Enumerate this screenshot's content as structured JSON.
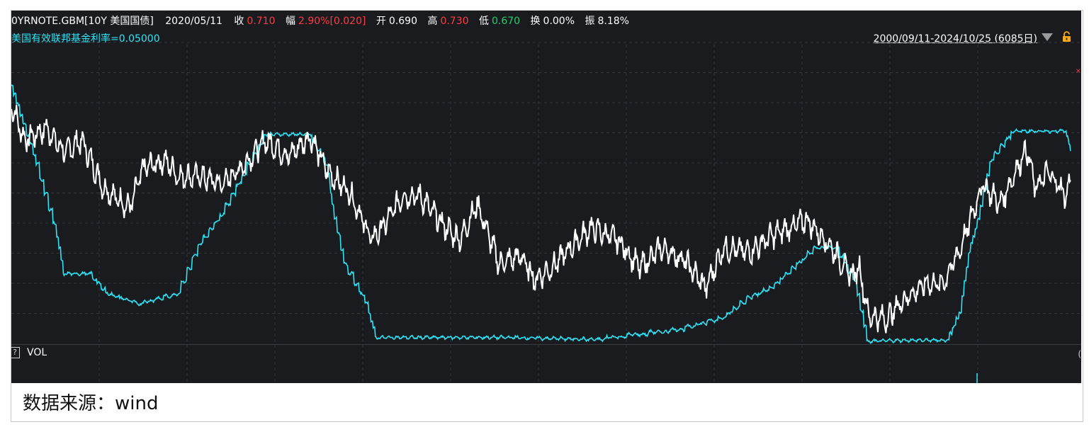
{
  "header": {
    "symbol": "0YRNOTE.GBM[10Y 美国国债]",
    "date": "2020/05/11",
    "close_label": "收",
    "close_value": "0.710",
    "change_label": "幅",
    "change_value": "2.90%[0.020]",
    "open_label": "开",
    "open_value": "0.690",
    "high_label": "高",
    "high_value": "0.730",
    "low_label": "低",
    "low_value": "0.670",
    "turnover_label": "换",
    "turnover_value": "0.00%",
    "amplitude_label": "振",
    "amplitude_value": "8.18%"
  },
  "rate_label": "美国有效联邦基金利率=0.05000",
  "range_text": "2000/09/11-2024/10/25 (6085日)",
  "vol_label": "VOL",
  "help_glyph": "?",
  "source_text": "数据来源：wind",
  "colors": {
    "background": "#1a1b1f",
    "treasury_line": "#ffffff",
    "fed_funds_line": "#2fe2f4",
    "up": "#ff3b44",
    "down": "#1fcf6a"
  },
  "chart_data": {
    "type": "line",
    "x_range": [
      "2000/09/11",
      "2024/10/25"
    ],
    "grid": true,
    "series": [
      {
        "name": "10Y 美国国债",
        "color": "#ffffff",
        "x": [
          2000.7,
          2001.0,
          2001.5,
          2001.9,
          2002.3,
          2002.8,
          2003.4,
          2003.7,
          2004.2,
          2004.5,
          2005.0,
          2005.5,
          2006.0,
          2006.5,
          2007.0,
          2007.5,
          2007.9,
          2008.4,
          2008.9,
          2009.2,
          2009.6,
          2010.0,
          2010.5,
          2010.9,
          2011.3,
          2011.8,
          2012.3,
          2012.6,
          2013.0,
          2013.5,
          2013.9,
          2014.5,
          2015.0,
          2015.5,
          2016.0,
          2016.5,
          2016.9,
          2017.5,
          2018.0,
          2018.8,
          2019.3,
          2019.8,
          2020.0,
          2020.2,
          2020.6,
          2021.0,
          2021.5,
          2021.9,
          2022.3,
          2022.8,
          2023.2,
          2023.8,
          2024.0,
          2024.3,
          2024.7,
          2024.8
        ],
        "y": [
          6.0,
          5.1,
          5.4,
          4.8,
          5.1,
          3.9,
          3.4,
          4.4,
          4.6,
          4.2,
          4.2,
          4.0,
          4.5,
          5.1,
          4.7,
          5.2,
          4.3,
          3.8,
          2.6,
          3.0,
          3.7,
          3.7,
          3.0,
          2.6,
          3.5,
          2.0,
          2.2,
          1.6,
          1.9,
          2.5,
          2.9,
          2.6,
          1.9,
          2.4,
          2.1,
          1.4,
          2.4,
          2.3,
          2.7,
          3.1,
          2.5,
          1.7,
          1.9,
          0.7,
          0.6,
          1.1,
          1.5,
          1.5,
          2.4,
          4.0,
          3.5,
          4.9,
          3.9,
          4.3,
          3.7,
          4.1
        ]
      },
      {
        "name": "美国有效联邦基金利率",
        "color": "#2fe2f4",
        "x": [
          2000.7,
          2001.0,
          2001.3,
          2001.7,
          2001.9,
          2002.5,
          2002.9,
          2003.6,
          2004.5,
          2005.0,
          2005.5,
          2006.0,
          2006.5,
          2007.5,
          2007.9,
          2008.0,
          2008.3,
          2008.8,
          2009.0,
          2010.0,
          2012.0,
          2014.0,
          2015.9,
          2016.9,
          2017.5,
          2018.0,
          2018.5,
          2019.0,
          2019.5,
          2019.9,
          2020.2,
          2021.0,
          2022.0,
          2022.3,
          2022.5,
          2022.7,
          2023.0,
          2023.5,
          2024.7,
          2024.8
        ],
        "y": [
          6.5,
          5.5,
          4.5,
          3.0,
          1.75,
          1.75,
          1.25,
          1.0,
          1.25,
          2.5,
          3.25,
          4.25,
          5.25,
          5.25,
          4.5,
          3.5,
          2.0,
          1.0,
          0.15,
          0.15,
          0.15,
          0.1,
          0.35,
          0.65,
          1.15,
          1.4,
          1.9,
          2.4,
          2.4,
          1.6,
          0.05,
          0.08,
          0.08,
          0.8,
          2.3,
          3.1,
          4.6,
          5.33,
          5.33,
          4.83
        ]
      }
    ]
  }
}
